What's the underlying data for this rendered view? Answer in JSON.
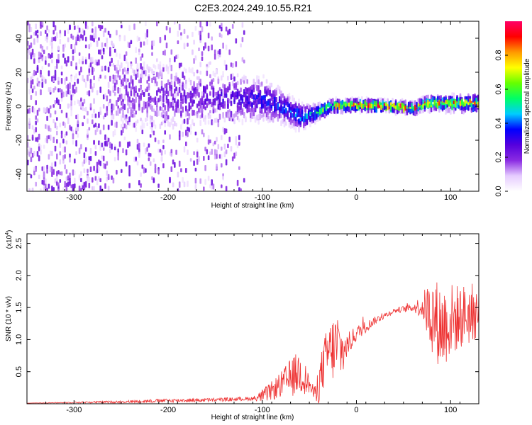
{
  "title": "C2E3.2024.249.10.55.R21",
  "chart_data": [
    {
      "type": "heatmap",
      "xlabel": "Height of straight line (km)",
      "ylabel": "Frequency (Hz)",
      "xlim": [
        -350,
        130
      ],
      "ylim": [
        -50,
        50
      ],
      "xticks": [
        -300,
        -200,
        -100,
        0,
        100
      ],
      "yticks": [
        -40,
        -20,
        0,
        20,
        40
      ],
      "xtick_labels": [
        "-300",
        "-200",
        "-100",
        "0",
        "100"
      ],
      "ytick_labels": [
        "-40",
        "-20",
        "0",
        "20",
        "40"
      ],
      "ridge": [
        {
          "x": -300,
          "freq": 6,
          "spread": 40,
          "level": 0.08
        },
        {
          "x": -250,
          "freq": 8,
          "spread": 14,
          "level": 0.2
        },
        {
          "x": -200,
          "freq": 6,
          "spread": 12,
          "level": 0.25
        },
        {
          "x": -150,
          "freq": 5,
          "spread": 10,
          "level": 0.28
        },
        {
          "x": -100,
          "freq": 4,
          "spread": 8,
          "level": 0.35
        },
        {
          "x": -80,
          "freq": 0,
          "spread": 6,
          "level": 0.4
        },
        {
          "x": -60,
          "freq": -6,
          "spread": 5,
          "level": 0.45
        },
        {
          "x": -45,
          "freq": -4,
          "spread": 3,
          "level": 0.55
        },
        {
          "x": -30,
          "freq": 0,
          "spread": 2.5,
          "level": 0.65
        },
        {
          "x": 0,
          "freq": 1,
          "spread": 2,
          "level": 0.85
        },
        {
          "x": 45,
          "freq": 0,
          "spread": 2,
          "level": 0.8
        },
        {
          "x": 60,
          "freq": -1,
          "spread": 2,
          "level": 0.8
        },
        {
          "x": 75,
          "freq": 2,
          "spread": 2.5,
          "level": 0.75
        },
        {
          "x": 130,
          "freq": 2,
          "spread": 3,
          "level": 0.7
        }
      ]
    },
    {
      "type": "line",
      "xlabel": "Height of straight line (km)",
      "ylabel": "SNR (10 * v/v)",
      "scale_label": "(x10",
      "scale_exponent": "4",
      "xlim": [
        -350,
        130
      ],
      "ylim": [
        0,
        2.65
      ],
      "xticks": [
        -300,
        -200,
        -100,
        0,
        100
      ],
      "yticks": [
        0.5,
        1.0,
        1.5,
        2.0,
        2.5
      ],
      "xtick_labels": [
        "-300",
        "-200",
        "-100",
        "0",
        "100"
      ],
      "ytick_labels": [
        "0.5",
        "1.0",
        "1.5",
        "2.0",
        "2.5"
      ],
      "color": "#ee3333",
      "series": [
        {
          "name": "SNR",
          "x": [
            -350,
            -300,
            -250,
            -200,
            -150,
            -110,
            -100,
            -90,
            -80,
            -70,
            -60,
            -50,
            -45,
            -40,
            -35,
            -30,
            -20,
            -15,
            -10,
            0,
            20,
            40,
            60,
            70,
            80,
            90,
            100,
            110,
            120,
            130
          ],
          "y": [
            0.01,
            0.02,
            0.03,
            0.05,
            0.06,
            0.08,
            0.12,
            0.2,
            0.3,
            0.4,
            0.5,
            0.3,
            0.15,
            0.3,
            0.6,
            0.8,
            0.9,
            0.8,
            0.9,
            1.1,
            1.3,
            1.45,
            1.5,
            1.52,
            1.4,
            1.2,
            1.3,
            1.35,
            1.4,
            1.45
          ],
          "noise": [
            0.0,
            0.01,
            0.02,
            0.03,
            0.03,
            0.03,
            0.1,
            0.15,
            0.2,
            0.3,
            0.35,
            0.15,
            0.1,
            0.3,
            0.4,
            0.45,
            0.6,
            0.4,
            0.2,
            0.12,
            0.06,
            0.04,
            0.06,
            0.2,
            0.6,
            0.7,
            0.6,
            0.5,
            0.5,
            0.4
          ]
        }
      ]
    }
  ],
  "colorbar": {
    "label": "Normalized spectral amplitude",
    "range": [
      0,
      1
    ],
    "ticks": [
      0.0,
      0.2,
      0.4,
      0.6,
      0.8
    ],
    "tick_labels": [
      "0.0",
      "0.2",
      "0.4",
      "0.6",
      "0.8"
    ],
    "colors": [
      "#ffffff",
      "#e6ccff",
      "#8a2be2",
      "#5500dd",
      "#0000ff",
      "#00ccff",
      "#00ff66",
      "#66ff00",
      "#ffff00",
      "#ff9900",
      "#ff0000",
      "#ff0066"
    ]
  }
}
